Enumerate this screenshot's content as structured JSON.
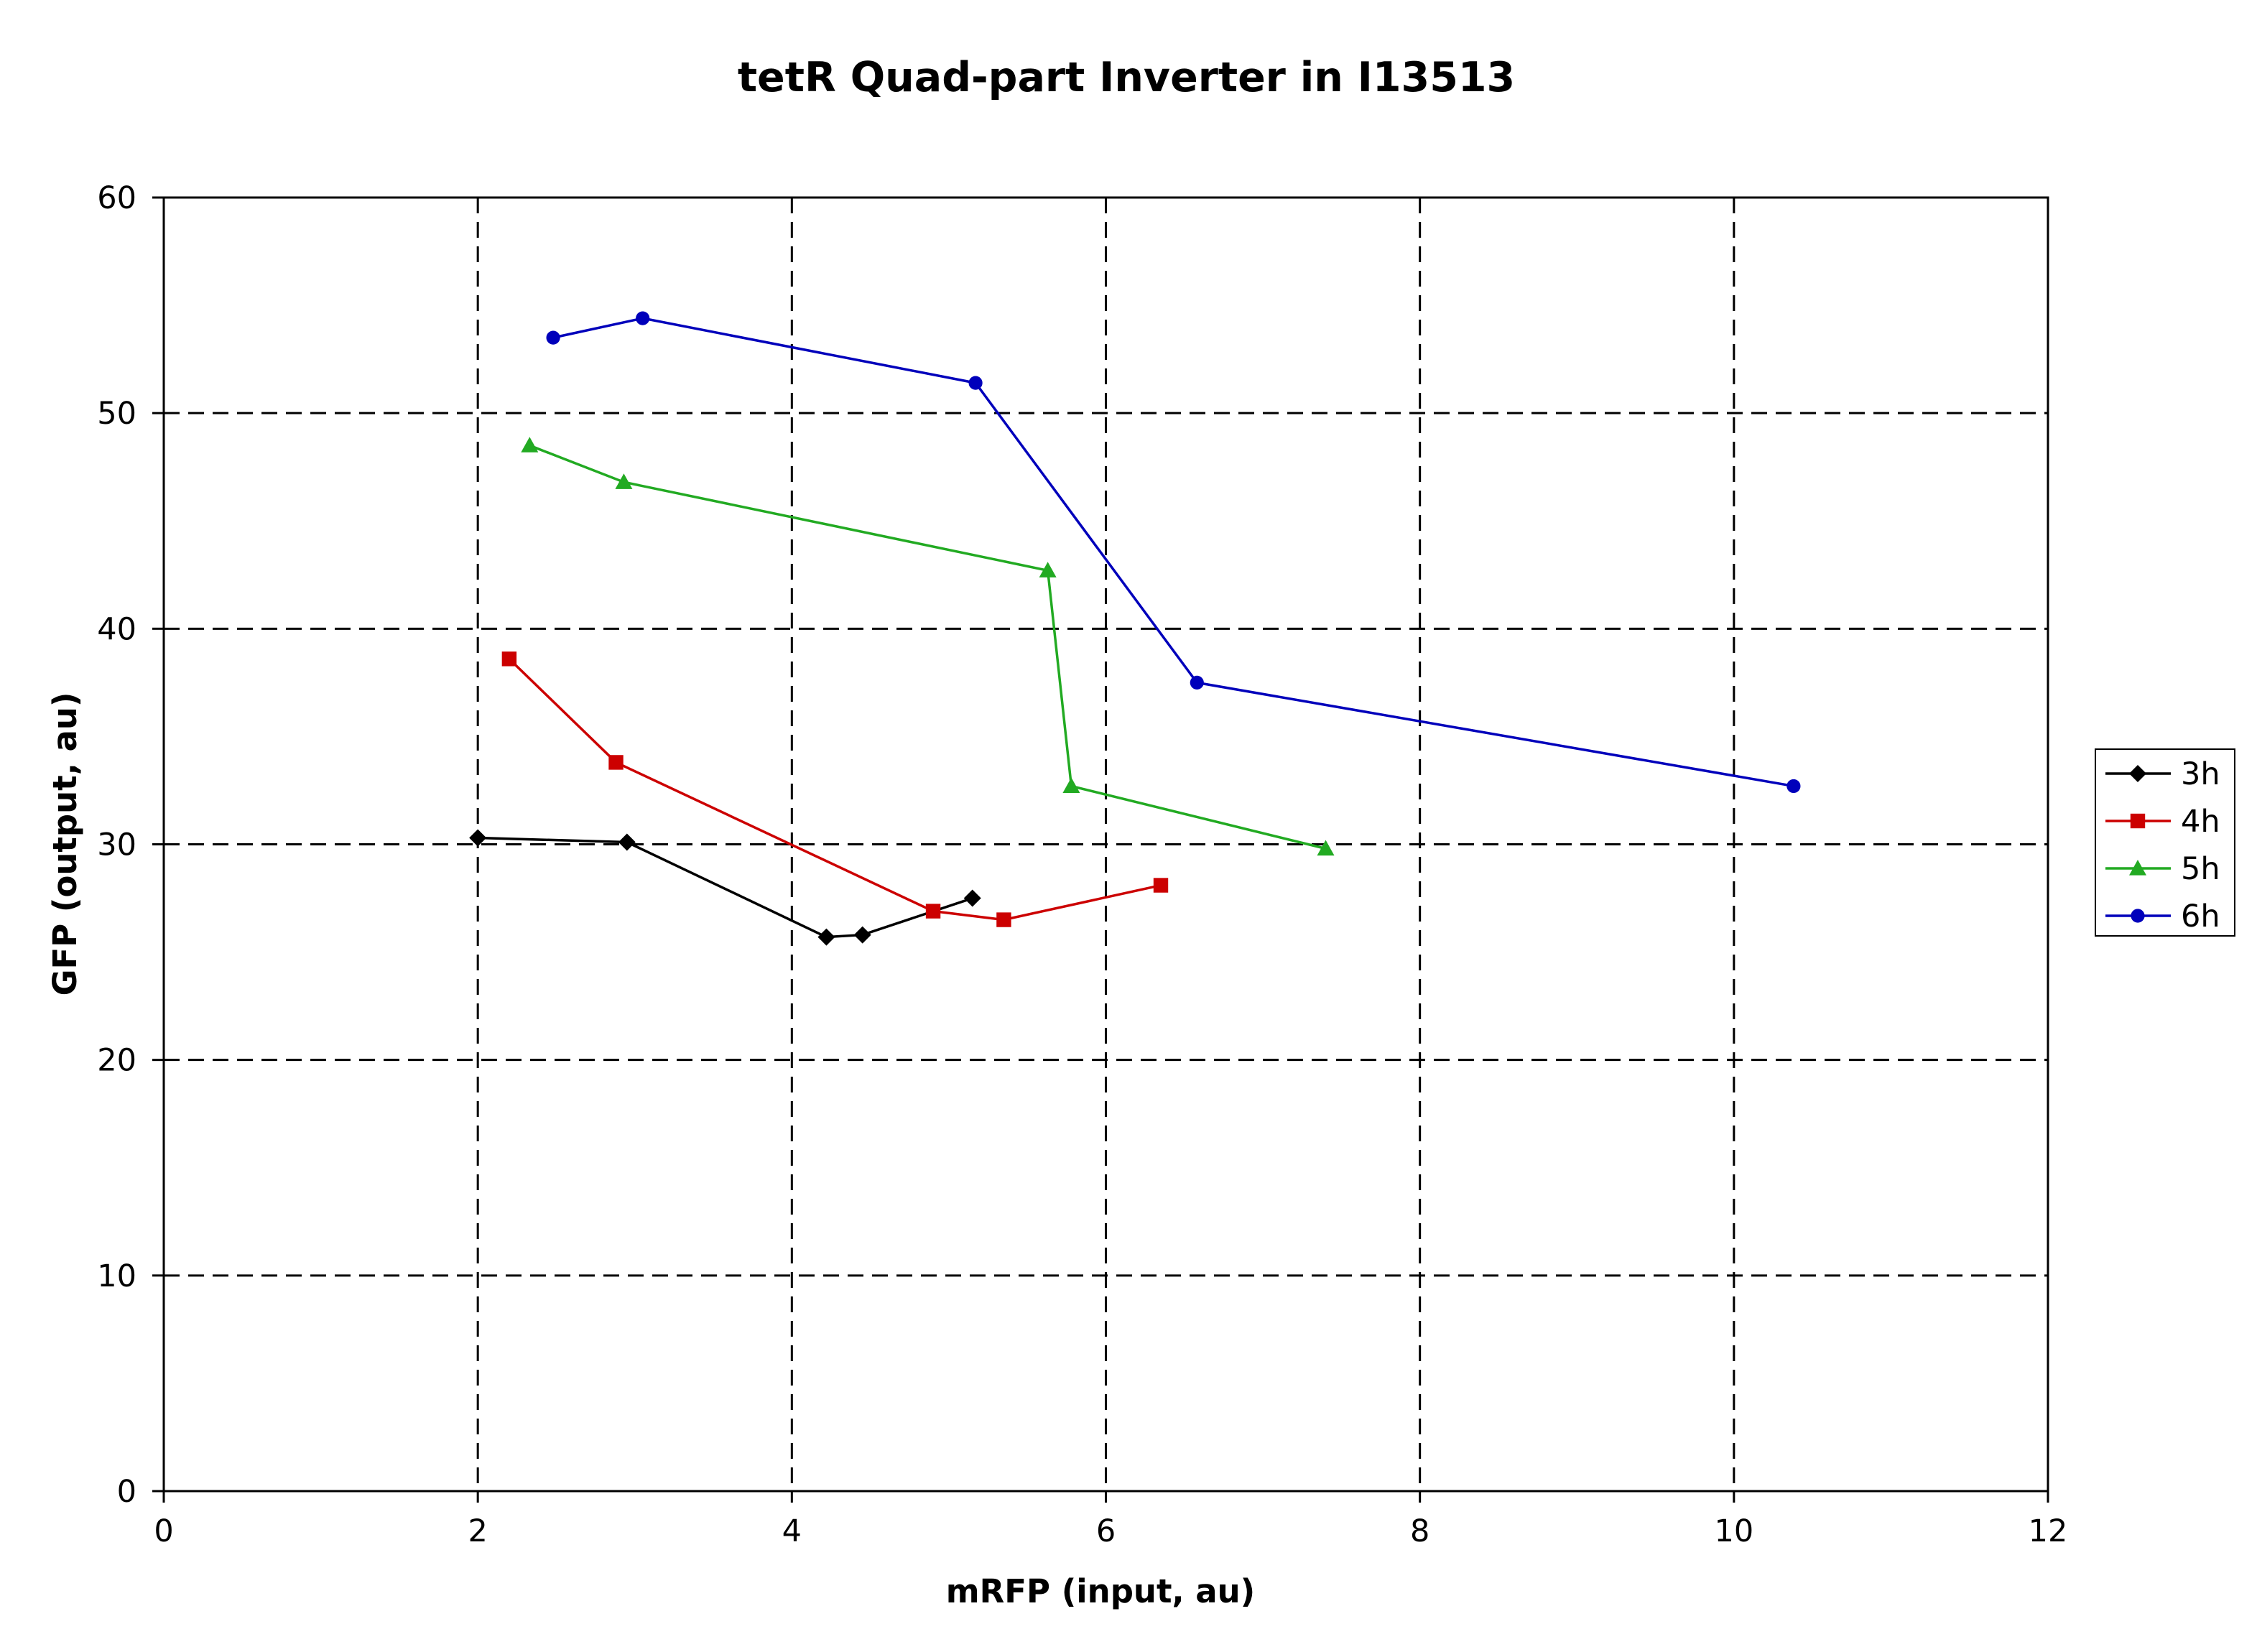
{
  "chart_data": {
    "type": "line",
    "title": "tetR Quad-part Inverter in I13513",
    "xlabel": "mRFP (input, au)",
    "ylabel": "GFP (output, au)",
    "xlim": [
      0,
      12
    ],
    "ylim": [
      0,
      60
    ],
    "xticks": [
      "0",
      "2",
      "4",
      "6",
      "8",
      "10",
      "12"
    ],
    "yticks": [
      "0",
      "10",
      "20",
      "30",
      "40",
      "50",
      "60"
    ],
    "grid": true,
    "grid_style": "dashed",
    "legend_position": "right",
    "series": [
      {
        "name": "3h",
        "color": "#000000",
        "marker": "diamond",
        "points": [
          [
            2.0,
            30.3
          ],
          [
            2.95,
            30.1
          ],
          [
            4.22,
            25.7
          ],
          [
            4.45,
            25.8
          ],
          [
            5.15,
            27.5
          ]
        ]
      },
      {
        "name": "4h",
        "color": "#cc0000",
        "marker": "square",
        "points": [
          [
            2.2,
            38.6
          ],
          [
            2.88,
            33.8
          ],
          [
            4.9,
            26.9
          ],
          [
            5.35,
            26.5
          ],
          [
            6.35,
            28.1
          ]
        ]
      },
      {
        "name": "5h",
        "color": "#22aa22",
        "marker": "triangle",
        "points": [
          [
            2.33,
            48.5
          ],
          [
            2.93,
            46.8
          ],
          [
            5.63,
            42.7
          ],
          [
            5.78,
            32.7
          ],
          [
            7.4,
            29.8
          ]
        ]
      },
      {
        "name": "6h",
        "color": "#0000bb",
        "marker": "circle",
        "points": [
          [
            2.48,
            53.5
          ],
          [
            3.05,
            54.4
          ],
          [
            5.17,
            51.4
          ],
          [
            6.58,
            37.5
          ],
          [
            10.38,
            32.7
          ]
        ]
      }
    ]
  }
}
